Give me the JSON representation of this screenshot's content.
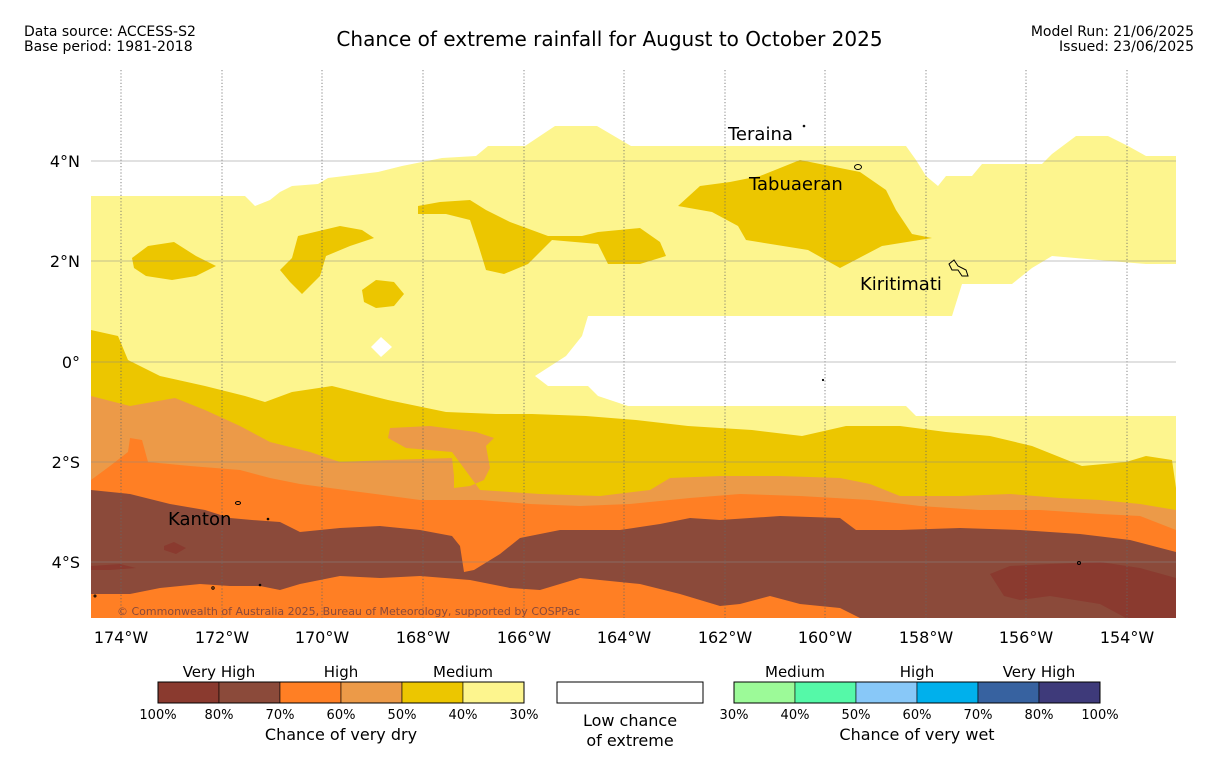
{
  "header": {
    "data_source": "Data source: ACCESS-S2",
    "base_period": "Base period: 1981-2018",
    "title": "Chance of extreme rainfall for August to October 2025",
    "model_run": "Model Run: 21/06/2025",
    "issued": "Issued: 23/06/2025"
  },
  "map": {
    "lon_labels": [
      "174°W",
      "172°W",
      "170°W",
      "168°W",
      "166°W",
      "164°W",
      "162°W",
      "160°W",
      "158°W",
      "156°W",
      "154°W"
    ],
    "lat_labels": [
      "4°N",
      "2°N",
      "0°",
      "2°S",
      "4°S"
    ],
    "places": {
      "teraina": "Teraina",
      "tabuaeran": "Tabuaeran",
      "kiritimati": "Kiritimati",
      "kanton": "Kanton"
    },
    "copyright": "© Commonwealth of Australia 2025, Bureau of Meteorology, supported by COSPPac",
    "colors": {
      "dry_100_80": "#8a3a2f",
      "dry_80_70": "#8b4a3a",
      "dry_70_60": "#ff7f24",
      "dry_60_50": "#ec9a48",
      "dry_50_40": "#ecc600",
      "dry_40_30": "#fdf58e"
    }
  },
  "legend": {
    "dry": {
      "categories": [
        "Very High",
        "High",
        "Medium"
      ],
      "ticks": [
        "100%",
        "80%",
        "70%",
        "60%",
        "50%",
        "40%",
        "30%"
      ],
      "caption": "Chance of very dry",
      "colors": [
        "#8a3a2f",
        "#8b4a3a",
        "#ff7f24",
        "#ec9a48",
        "#ecc600",
        "#fdf58e"
      ]
    },
    "low": {
      "line1": "Low chance",
      "line2": "of extreme"
    },
    "wet": {
      "categories": [
        "Medium",
        "High",
        "Very High"
      ],
      "ticks": [
        "30%",
        "40%",
        "50%",
        "60%",
        "70%",
        "80%",
        "100%"
      ],
      "caption": "Chance of very wet",
      "colors": [
        "#9cfa98",
        "#55f9a8",
        "#88c8f8",
        "#00b0ec",
        "#3762a0",
        "#3e3a7a"
      ]
    }
  }
}
